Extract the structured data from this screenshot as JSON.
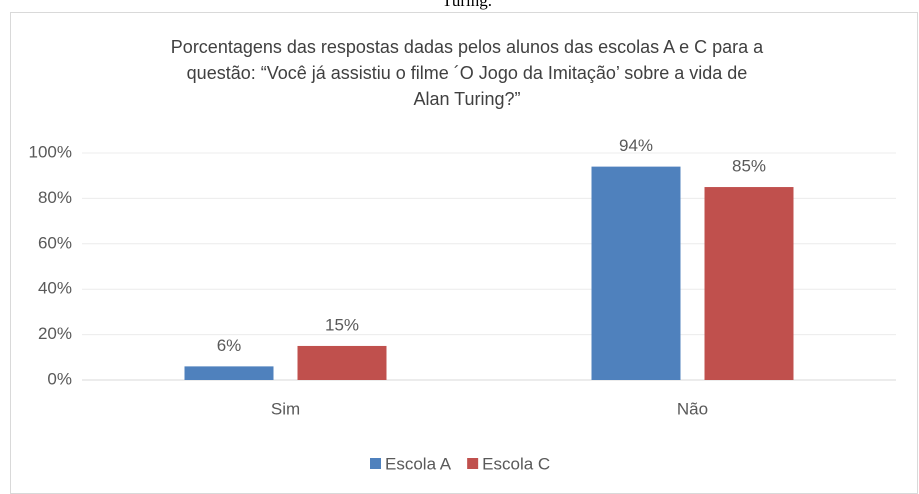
{
  "caption": "Turing.",
  "chart_data": {
    "type": "bar",
    "title": [
      "Porcentagens das respostas dadas pelos alunos das escolas A e C para a",
      "questão: “Você já assistiu o filme ´O Jogo da Imitação’ sobre a vida de",
      "Alan Turing?”"
    ],
    "categories": [
      "Sim",
      "Não"
    ],
    "series": [
      {
        "name": "Escola A",
        "color": "#4f81bd",
        "values": [
          6,
          94
        ],
        "value_labels": [
          "6%",
          "94%"
        ]
      },
      {
        "name": "Escola C",
        "color": "#c0504d",
        "values": [
          15,
          85
        ],
        "value_labels": [
          "15%",
          "85%"
        ]
      }
    ],
    "ylim": [
      0,
      100
    ],
    "yticks": [
      {
        "value": 0,
        "label": "0%"
      },
      {
        "value": 20,
        "label": "20%"
      },
      {
        "value": 40,
        "label": "40%"
      },
      {
        "value": 60,
        "label": "60%"
      },
      {
        "value": 80,
        "label": "80%"
      },
      {
        "value": 100,
        "label": "100%"
      }
    ],
    "grid": true,
    "legend": "bottom"
  }
}
